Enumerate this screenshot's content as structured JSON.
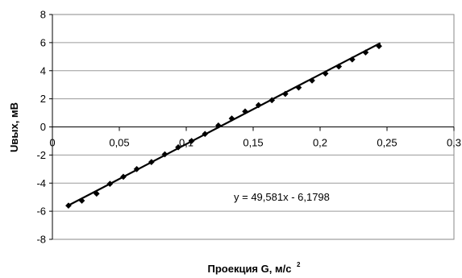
{
  "chart_data": {
    "type": "scatter",
    "xlabel": "Проекция G, м/с",
    "xlabel_sup": "2",
    "ylabel": "Uвых, мВ",
    "xlim": [
      0,
      0.3
    ],
    "ylim": [
      -8,
      8
    ],
    "x_ticks": [
      0,
      0.05,
      0.1,
      0.15,
      0.2,
      0.25,
      0.3
    ],
    "x_tick_labels": [
      "0",
      "0,05",
      "0,1",
      "0,15",
      "0,2",
      "0,25",
      "0,3"
    ],
    "y_ticks": [
      -8,
      -6,
      -4,
      -2,
      0,
      2,
      4,
      6,
      8
    ],
    "y_tick_labels": [
      "-8",
      "-6",
      "-4",
      "-2",
      "0",
      "2",
      "4",
      "6",
      "8"
    ],
    "grid": "horizontal",
    "legend": "none",
    "annotation": "y = 49,581x - 6,1798",
    "trendline": {
      "slope": 49.581,
      "intercept": -6.1798,
      "x_range": [
        0.012,
        0.245
      ]
    },
    "series": [
      {
        "marker": "diamond",
        "color": "#000000",
        "x": [
          0.012,
          0.022,
          0.033,
          0.043,
          0.053,
          0.063,
          0.074,
          0.084,
          0.094,
          0.104,
          0.114,
          0.124,
          0.134,
          0.144,
          0.154,
          0.164,
          0.174,
          0.184,
          0.194,
          0.204,
          0.214,
          0.224,
          0.234,
          0.244
        ],
        "y": [
          -5.6,
          -5.25,
          -4.75,
          -4.05,
          -3.55,
          -3.0,
          -2.5,
          -1.95,
          -1.45,
          -1.0,
          -0.5,
          0.1,
          0.6,
          1.1,
          1.55,
          1.9,
          2.35,
          2.8,
          3.3,
          3.8,
          4.3,
          4.8,
          5.3,
          5.75
        ]
      }
    ]
  }
}
